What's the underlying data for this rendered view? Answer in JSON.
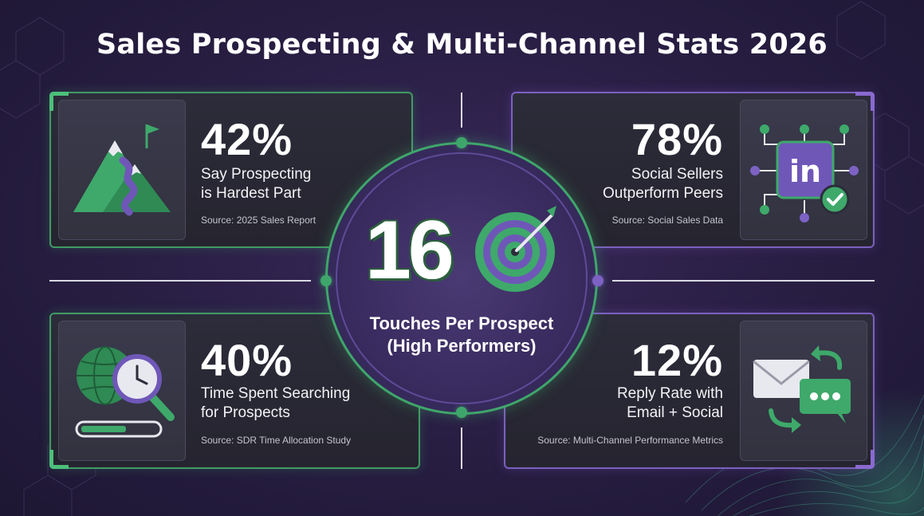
{
  "title": "Sales Prospecting & Multi-Channel Stats 2026",
  "colors": {
    "green_accent": "#3fa66b",
    "purple_accent": "#7b5fbf",
    "background": "#2a1f45",
    "card_bg": "#2a2a36"
  },
  "center": {
    "value": "16",
    "label_line1": "Touches Per Prospect",
    "label_line2": "(High Performers)",
    "icon": "target-bullseye-icon"
  },
  "cards": {
    "prospecting": {
      "stat": "42%",
      "label_line1": "Say Prospecting",
      "label_line2": "is Hardest Part",
      "source": "Source: 2025 Sales Report",
      "icon": "mountain-flag-icon"
    },
    "social": {
      "stat": "78%",
      "label_line1": "Social Sellers",
      "label_line2": "Outperform Peers",
      "source": "Source: Social Sales Data",
      "icon": "linkedin-network-icon",
      "icon_text": "in"
    },
    "searching": {
      "stat": "40%",
      "label_line1": "Time Spent Searching",
      "label_line2": "for Prospects",
      "source": "Source: SDR Time Allocation Study",
      "icon": "globe-clock-search-icon"
    },
    "reply": {
      "stat": "12%",
      "label_line1": "Reply Rate with",
      "label_line2": "Email + Social",
      "source": "Source: Multi-Channel Performance Metrics",
      "icon": "email-chat-exchange-icon"
    }
  }
}
